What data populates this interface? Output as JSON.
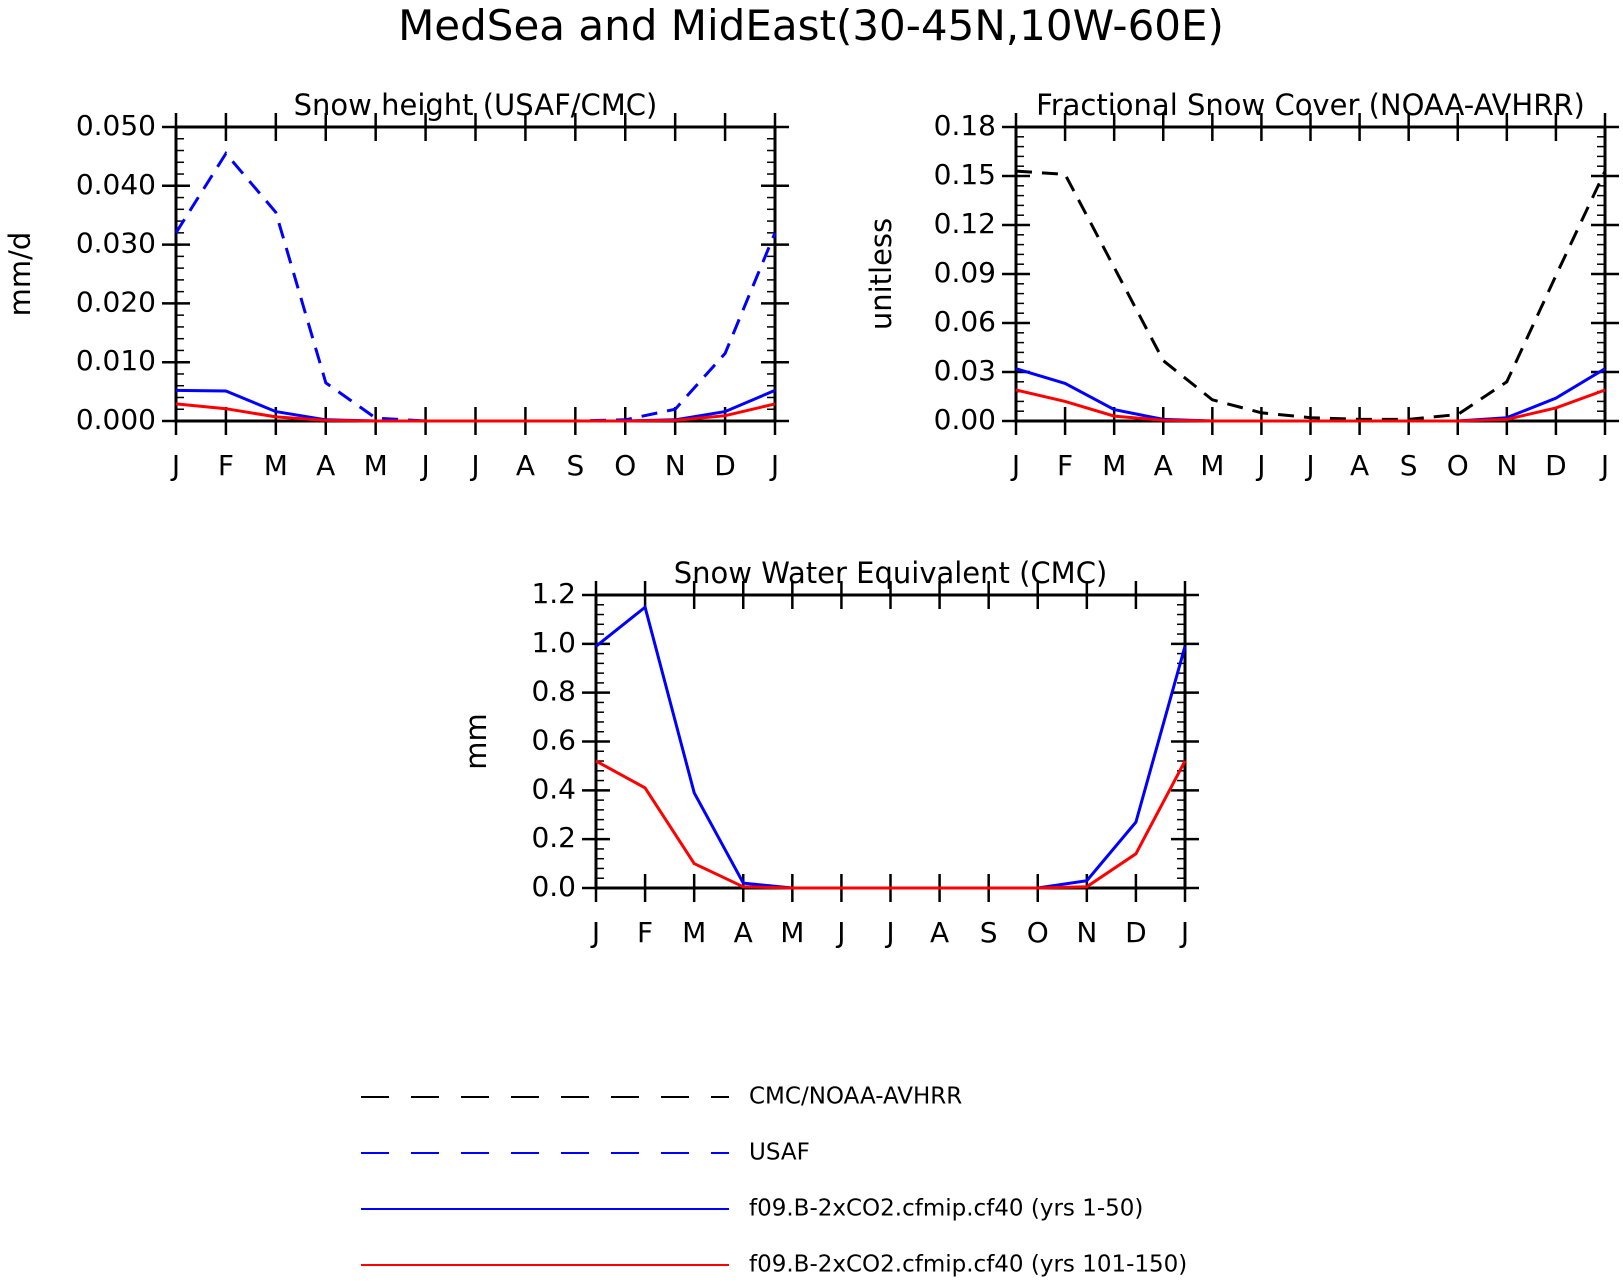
{
  "figure": {
    "title": "MedSea and MidEast(30-45N,10W-60E)"
  },
  "colors": {
    "black": "#000000",
    "blue": "#0000ff",
    "red": "#ff0000"
  },
  "legend": {
    "placement": "bottom-center",
    "entries": [
      {
        "label": "CMC/NOAA-AVHRR",
        "color": "#000000",
        "dashed": true
      },
      {
        "label": "USAF",
        "color": "#0000ff",
        "dashed": true
      },
      {
        "label": "f09.B-2xCO2.cfmip.cf40 (yrs 1-50)",
        "color": "#0000ff",
        "dashed": false
      },
      {
        "label": "f09.B-2xCO2.cfmip.cf40 (yrs 101-150)",
        "color": "#ff0000",
        "dashed": false
      }
    ]
  },
  "chart_data": [
    {
      "type": "line",
      "title": "Snow height (USAF/CMC)",
      "xlabel": "",
      "ylabel": "mm/d",
      "categories": [
        "J",
        "F",
        "M",
        "A",
        "M",
        "J",
        "J",
        "A",
        "S",
        "O",
        "N",
        "D",
        "J"
      ],
      "ylim": [
        0,
        0.05
      ],
      "yticks": [
        "0.000",
        "0.010",
        "0.020",
        "0.030",
        "0.040",
        "0.050"
      ],
      "grid": false,
      "series": [
        {
          "name": "CMC/NOAA-AVHRR",
          "color": "#000000",
          "dashed": true,
          "values": [
            0,
            0,
            0,
            0,
            0,
            0,
            0,
            0,
            0,
            0,
            0,
            0,
            0
          ]
        },
        {
          "name": "USAF",
          "color": "#0000ff",
          "dashed": true,
          "values": [
            0.032,
            0.0455,
            0.0355,
            0.0065,
            0.0005,
            0,
            0,
            0,
            0,
            0.0002,
            0.002,
            0.0115,
            0.032
          ]
        },
        {
          "name": "f09.B-2xCO2.cfmip.cf40 (yrs 1-50)",
          "color": "#0000ff",
          "dashed": false,
          "values": [
            0.0052,
            0.0051,
            0.0016,
            0.0002,
            0,
            0,
            0,
            0,
            0,
            0,
            0.0002,
            0.0016,
            0.0052
          ]
        },
        {
          "name": "f09.B-2xCO2.cfmip.cf40 (yrs 101-150)",
          "color": "#ff0000",
          "dashed": false,
          "values": [
            0.0029,
            0.0021,
            0.0007,
            0.0001,
            0,
            0,
            0,
            0,
            0,
            0,
            0.0001,
            0.0009,
            0.0029
          ]
        }
      ]
    },
    {
      "type": "line",
      "title": "Fractional Snow Cover (NOAA-AVHRR)",
      "xlabel": "",
      "ylabel": "unitless",
      "categories": [
        "J",
        "F",
        "M",
        "A",
        "M",
        "J",
        "J",
        "A",
        "S",
        "O",
        "N",
        "D",
        "J"
      ],
      "ylim": [
        0,
        0.18
      ],
      "yticks": [
        "0.00",
        "0.03",
        "0.06",
        "0.09",
        "0.12",
        "0.15",
        "0.18"
      ],
      "grid": false,
      "series": [
        {
          "name": "CMC/NOAA-AVHRR",
          "color": "#000000",
          "dashed": true,
          "values": [
            0.153,
            0.151,
            0.094,
            0.037,
            0.013,
            0.005,
            0.002,
            0.001,
            0.001,
            0.004,
            0.024,
            0.089,
            0.153
          ]
        },
        {
          "name": "f09.B-2xCO2.cfmip.cf40 (yrs 1-50)",
          "color": "#0000ff",
          "dashed": false,
          "values": [
            0.032,
            0.023,
            0.007,
            0.001,
            0,
            0,
            0,
            0,
            0,
            0,
            0.002,
            0.014,
            0.032
          ]
        },
        {
          "name": "f09.B-2xCO2.cfmip.cf40 (yrs 101-150)",
          "color": "#ff0000",
          "dashed": false,
          "values": [
            0.019,
            0.012,
            0.003,
            0.0005,
            0,
            0,
            0,
            0,
            0,
            0,
            0.001,
            0.008,
            0.019
          ]
        }
      ]
    },
    {
      "type": "line",
      "title": "Snow Water Equivalent (CMC)",
      "xlabel": "",
      "ylabel": "mm",
      "categories": [
        "J",
        "F",
        "M",
        "A",
        "M",
        "J",
        "J",
        "A",
        "S",
        "O",
        "N",
        "D",
        "J"
      ],
      "ylim": [
        0,
        1.2
      ],
      "yticks": [
        "0.0",
        "0.2",
        "0.4",
        "0.6",
        "0.8",
        "1.0",
        "1.2"
      ],
      "grid": false,
      "series": [
        {
          "name": "CMC/NOAA-AVHRR",
          "color": "#000000",
          "dashed": true,
          "values": [
            0,
            0,
            0,
            0,
            0,
            0,
            0,
            0,
            0,
            0,
            0,
            0,
            0
          ]
        },
        {
          "name": "f09.B-2xCO2.cfmip.cf40 (yrs 1-50)",
          "color": "#0000ff",
          "dashed": false,
          "values": [
            0.99,
            1.15,
            0.39,
            0.02,
            0,
            0,
            0,
            0,
            0,
            0,
            0.03,
            0.27,
            0.99
          ]
        },
        {
          "name": "f09.B-2xCO2.cfmip.cf40 (yrs 101-150)",
          "color": "#ff0000",
          "dashed": false,
          "values": [
            0.52,
            0.41,
            0.1,
            0.005,
            0,
            0,
            0,
            0,
            0,
            0,
            0.005,
            0.14,
            0.52
          ]
        }
      ]
    }
  ]
}
